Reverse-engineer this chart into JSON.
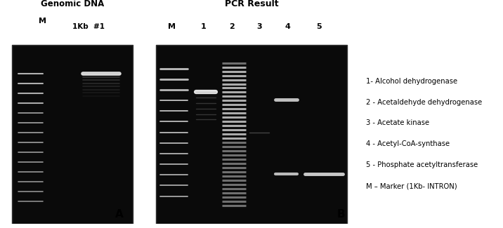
{
  "title_left": "Genomic DNA",
  "title_right": "PCR Result",
  "label_A": "A",
  "label_B": "B",
  "lane_labels_left": [
    "M",
    "1Kb  #1"
  ],
  "lane_labels_right": [
    "M",
    "1",
    "2",
    "3",
    "4",
    "5"
  ],
  "legend_lines": [
    "1- Alcohol dehydrogenase",
    "2 - Acetaldehyde dehydrogenase",
    "3 - Acetate kinase",
    "4 - Acetyl-CoA-synthase",
    "5 - Phosphate acetyltransferase",
    "M – Marker (1Kb- INTRON)"
  ],
  "bg_color": "#ffffff",
  "gel_bg": "#0a0a0a",
  "band_color_bright": "#e8e8e8",
  "band_color_mid": "#aaaaaa",
  "band_color_dim": "#666666"
}
